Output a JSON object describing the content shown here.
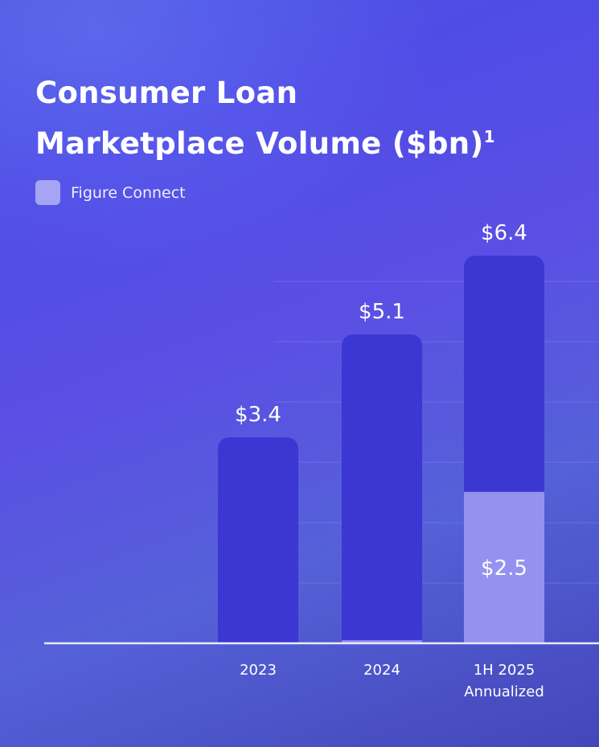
{
  "title": {
    "line1": "Consumer Loan",
    "line2": "Marketplace Volume ($bn)",
    "footnote": "1"
  },
  "legend": [
    {
      "label": "Figure Connect",
      "color": "#a5a5f3"
    }
  ],
  "colors": {
    "bar": "#3c36d2",
    "figure_connect": "#a3a2f4",
    "axis": "#e8e8ff",
    "gridline": "#7a80e8"
  },
  "chart_data": {
    "type": "bar",
    "categories": [
      "2023",
      "2024",
      "1H 2025 Annualized"
    ],
    "category_lines": [
      [
        "2023"
      ],
      [
        "2024"
      ],
      [
        "1H 2025",
        "Annualized"
      ]
    ],
    "series": [
      {
        "name": "Total",
        "values": [
          3.4,
          5.1,
          6.4
        ],
        "labels": [
          "$3.4",
          "$5.1",
          "$6.4"
        ]
      },
      {
        "name": "Figure Connect",
        "values": [
          0,
          0.05,
          2.5
        ],
        "labels": [
          "",
          "",
          "$2.5"
        ]
      }
    ],
    "ylim": [
      0,
      6.4
    ],
    "grid": true,
    "legend_position": "top-left"
  }
}
